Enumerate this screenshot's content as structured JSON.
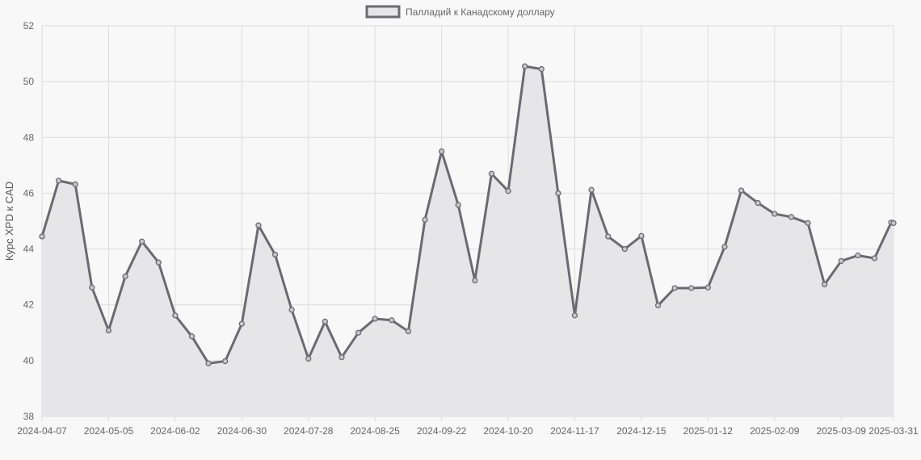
{
  "chart_data": {
    "type": "line",
    "title": "",
    "xlabel": "",
    "ylabel": "Курс XPD к CAD",
    "legend_position": "top-center",
    "grid": true,
    "ylim": [
      38,
      52
    ],
    "yticks": [
      38,
      40,
      42,
      44,
      46,
      48,
      50,
      52
    ],
    "xticks": [
      "2024-04-07",
      "2024-05-05",
      "2024-06-02",
      "2024-06-30",
      "2024-07-28",
      "2024-08-25",
      "2024-09-22",
      "2024-10-20",
      "2024-11-17",
      "2024-12-15",
      "2025-01-12",
      "2025-02-09",
      "2025-03-09",
      "2025-03-31"
    ],
    "x": [
      "2024-04-07",
      "2024-04-14",
      "2024-04-21",
      "2024-04-28",
      "2024-05-05",
      "2024-05-12",
      "2024-05-19",
      "2024-05-26",
      "2024-06-02",
      "2024-06-09",
      "2024-06-16",
      "2024-06-23",
      "2024-06-30",
      "2024-07-07",
      "2024-07-14",
      "2024-07-21",
      "2024-07-28",
      "2024-08-04",
      "2024-08-11",
      "2024-08-18",
      "2024-08-25",
      "2024-09-01",
      "2024-09-08",
      "2024-09-15",
      "2024-09-22",
      "2024-09-29",
      "2024-10-06",
      "2024-10-13",
      "2024-10-20",
      "2024-10-27",
      "2024-11-03",
      "2024-11-10",
      "2024-11-17",
      "2024-11-24",
      "2024-12-01",
      "2024-12-08",
      "2024-12-15",
      "2024-12-22",
      "2024-12-29",
      "2025-01-05",
      "2025-01-12",
      "2025-01-19",
      "2025-01-26",
      "2025-02-02",
      "2025-02-09",
      "2025-02-16",
      "2025-02-23",
      "2025-03-02",
      "2025-03-09",
      "2025-03-16",
      "2025-03-23",
      "2025-03-30",
      "2025-03-31"
    ],
    "series": [
      {
        "name": "Палладий к Канадскому доллару",
        "color": "#6b6a70",
        "fill": "#e6e6e8",
        "values": [
          44.45,
          46.45,
          46.32,
          42.62,
          41.08,
          43.02,
          44.27,
          43.52,
          41.62,
          40.87,
          39.9,
          39.98,
          41.32,
          44.85,
          43.8,
          41.82,
          40.07,
          41.4,
          40.12,
          41.0,
          41.5,
          41.45,
          41.05,
          45.05,
          47.5,
          45.58,
          42.87,
          46.7,
          46.08,
          50.55,
          50.45,
          46.0,
          41.62,
          46.12,
          44.45,
          44.0,
          44.47,
          41.98,
          42.6,
          42.6,
          42.62,
          44.08,
          46.1,
          45.65,
          45.26,
          45.15,
          44.93,
          42.73,
          43.57,
          43.77,
          43.67,
          44.95,
          44.93
        ]
      }
    ]
  }
}
